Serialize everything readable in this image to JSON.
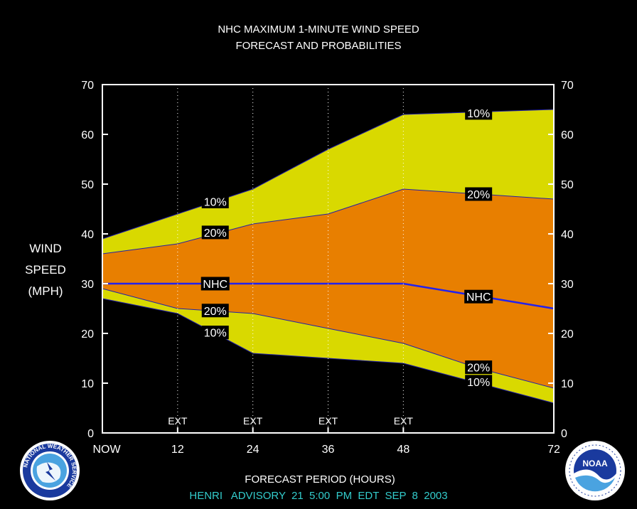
{
  "chart_data": {
    "type": "area",
    "title": "NHC MAXIMUM 1-MINUTE WIND SPEED",
    "subtitle": "FORECAST AND PROBABILITIES",
    "ylabel": [
      "WIND",
      "SPEED",
      "(MPH)"
    ],
    "xlabel": "FORECAST PERIOD (HOURS)",
    "footer": "HENRI   ADVISORY  21  5:00  PM  EDT  SEP  8  2003",
    "ylim": [
      0,
      70
    ],
    "yticks": [
      0,
      10,
      20,
      30,
      40,
      50,
      60,
      70
    ],
    "xlim": [
      0,
      72
    ],
    "xticks": [
      {
        "x": 0,
        "label": "NOW"
      },
      {
        "x": 12,
        "label": "12"
      },
      {
        "x": 24,
        "label": "24"
      },
      {
        "x": 36,
        "label": "36"
      },
      {
        "x": 48,
        "label": "48"
      },
      {
        "x": 72,
        "label": "72"
      }
    ],
    "ext_markers": [
      {
        "x": 12,
        "label": "EXT"
      },
      {
        "x": 24,
        "label": "EXT"
      },
      {
        "x": 36,
        "label": "EXT"
      },
      {
        "x": 48,
        "label": "EXT"
      }
    ],
    "x": [
      0,
      12,
      24,
      36,
      48,
      60,
      72
    ],
    "series": [
      {
        "name": "10%",
        "role": "upper",
        "values": [
          39,
          44,
          49,
          57,
          64,
          64.5,
          65
        ]
      },
      {
        "name": "20%",
        "role": "upper",
        "values": [
          36,
          38,
          42,
          44,
          49,
          48,
          47
        ]
      },
      {
        "name": "NHC",
        "role": "forecast",
        "values": [
          30,
          30,
          30,
          30,
          30,
          27.5,
          25
        ]
      },
      {
        "name": "20%",
        "role": "lower",
        "values": [
          29,
          25,
          24,
          21,
          18,
          13,
          9
        ]
      },
      {
        "name": "10%",
        "role": "lower",
        "values": [
          27,
          24,
          16,
          15,
          14,
          10,
          6
        ]
      }
    ],
    "labels": [
      {
        "text": "10%",
        "x": 60,
        "y": 64.3,
        "series": 0
      },
      {
        "text": "20%",
        "x": 60,
        "y": 48,
        "series": 1
      },
      {
        "text": "10%",
        "x": 18,
        "y": 46.5,
        "series": 0
      },
      {
        "text": "20%",
        "x": 18,
        "y": 40.3,
        "series": 1
      },
      {
        "text": "NHC",
        "x": 18,
        "y": 30,
        "series": 2
      },
      {
        "text": "NHC",
        "x": 60,
        "y": 27.4,
        "series": 2
      },
      {
        "text": "20%",
        "x": 18,
        "y": 24.6,
        "series": 3
      },
      {
        "text": "10%",
        "x": 18,
        "y": 20.2,
        "series": 4
      },
      {
        "text": "20%",
        "x": 60,
        "y": 13.2,
        "series": 3
      },
      {
        "text": "10%",
        "x": 60,
        "y": 10.3,
        "series": 4
      }
    ],
    "colors": {
      "band_10": "#d9d900",
      "band_20": "#e87f00",
      "nhc_line": "#2222ee",
      "edge": "#2222aa",
      "axis": "#ffffff",
      "footer": "#33cccc",
      "background": "#000000"
    },
    "grid": false,
    "legend": "none"
  },
  "logos": {
    "left": "NATIONAL WEATHER SERVICE",
    "right": "NOAA"
  }
}
